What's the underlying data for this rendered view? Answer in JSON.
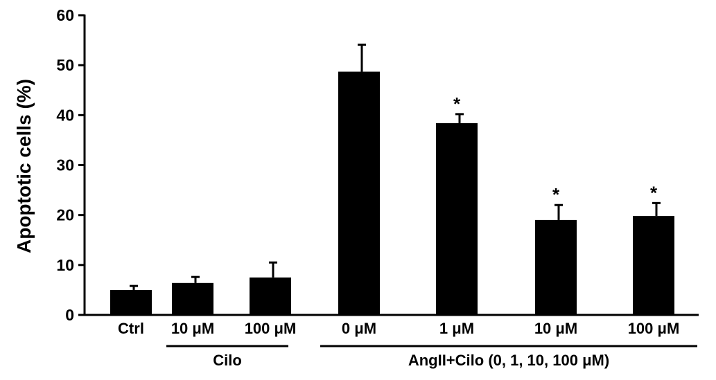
{
  "chart_data": {
    "type": "bar",
    "title": "",
    "xlabel": "",
    "ylabel": "Apoptotic cells (%)",
    "ylim": [
      0,
      60
    ],
    "yticks": [
      "0",
      "10",
      "20",
      "30",
      "40",
      "50",
      "60"
    ],
    "categories": [
      "Ctrl",
      "10 μM",
      "100 μM",
      "0 μM",
      "1 μM",
      "10 μM",
      "100 μM"
    ],
    "values": [
      5.0,
      6.4,
      7.5,
      48.7,
      38.4,
      19.0,
      19.8
    ],
    "errors": [
      0.8,
      1.2,
      3.0,
      5.4,
      1.8,
      3.0,
      2.6
    ],
    "significance": [
      "",
      "",
      "",
      "",
      "*",
      "*",
      "*"
    ],
    "groups": [
      {
        "label": "Cilo",
        "from": 1,
        "to": 2
      },
      {
        "label": "AngII+Cilo (0, 1, 10, 100 μM)",
        "from": 3,
        "to": 6
      }
    ],
    "colors": {
      "bars": "#000000"
    },
    "grid": false,
    "legend": "none"
  }
}
